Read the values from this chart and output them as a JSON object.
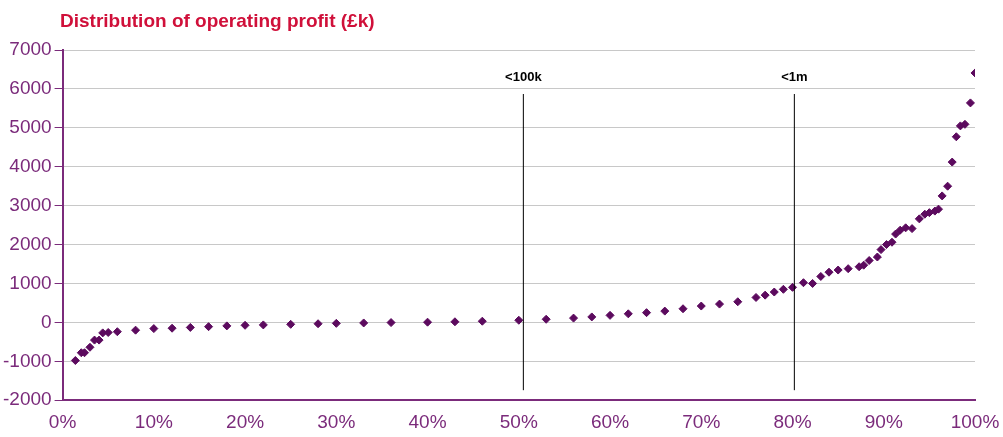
{
  "chart_data": {
    "type": "scatter",
    "title": "Distribution of operating profit (£k)",
    "marker": "diamond",
    "grid": "y",
    "legend": false,
    "xlim": [
      0,
      100
    ],
    "xticks": [
      {
        "value": 0,
        "label": "0%"
      },
      {
        "value": 10,
        "label": "10%"
      },
      {
        "value": 20,
        "label": "20%"
      },
      {
        "value": 30,
        "label": "30%"
      },
      {
        "value": 40,
        "label": "40%"
      },
      {
        "value": 50,
        "label": "50%"
      },
      {
        "value": 60,
        "label": "60%"
      },
      {
        "value": 70,
        "label": "70%"
      },
      {
        "value": 80,
        "label": "80%"
      },
      {
        "value": 90,
        "label": "90%"
      },
      {
        "value": 100,
        "label": "100%"
      }
    ],
    "ylim": [
      -2000,
      7000
    ],
    "yticks": [
      -2000,
      -1000,
      0,
      1000,
      2000,
      3000,
      4000,
      5000,
      6000,
      7000
    ],
    "ref_lines": [
      {
        "axis": "x",
        "value": 50.5,
        "label": "<100k",
        "color": "#000000"
      },
      {
        "axis": "x",
        "value": 80.2,
        "label": "<1m",
        "color": "#000000"
      }
    ],
    "series": [
      {
        "color": "#5c0a5e",
        "x": [
          1.4,
          2.05,
          2.4,
          3.0,
          3.5,
          4.0,
          4.4,
          5,
          6,
          8,
          10,
          12,
          14,
          16,
          18,
          20,
          22,
          25,
          28,
          30,
          33,
          36,
          40,
          43,
          46,
          50,
          53,
          56,
          58,
          60,
          62,
          64,
          66,
          68,
          70,
          72,
          74,
          76,
          77,
          78,
          79,
          80,
          81.2,
          82.2,
          83.1,
          84.0,
          85.0,
          86.1,
          87.3,
          87.8,
          88.4,
          89.3,
          89.7,
          90.3,
          90.9,
          91.3,
          91.8,
          92.4,
          93.1,
          93.9,
          94.5,
          95.0,
          95.6,
          96.0,
          96.4,
          97.0,
          97.5,
          97.95,
          98.4,
          98.9,
          99.5,
          100
        ],
        "values": [
          -980,
          -780,
          -780,
          -640,
          -455,
          -455,
          -270,
          -260,
          -240,
          -200,
          -160,
          -150,
          -130,
          -110,
          -90,
          -75,
          -65,
          -50,
          -35,
          -25,
          -15,
          -5,
          5,
          15,
          30,
          55,
          80,
          110,
          140,
          180,
          220,
          250,
          290,
          350,
          420,
          470,
          530,
          640,
          700,
          780,
          850,
          900,
          1020,
          1000,
          1180,
          1290,
          1345,
          1380,
          1430,
          1470,
          1590,
          1680,
          1870,
          2000,
          2060,
          2270,
          2370,
          2430,
          2410,
          2660,
          2780,
          2820,
          2860,
          2910,
          3250,
          3500,
          4120,
          4770,
          5050,
          5090,
          5640,
          6410
        ]
      }
    ]
  }
}
